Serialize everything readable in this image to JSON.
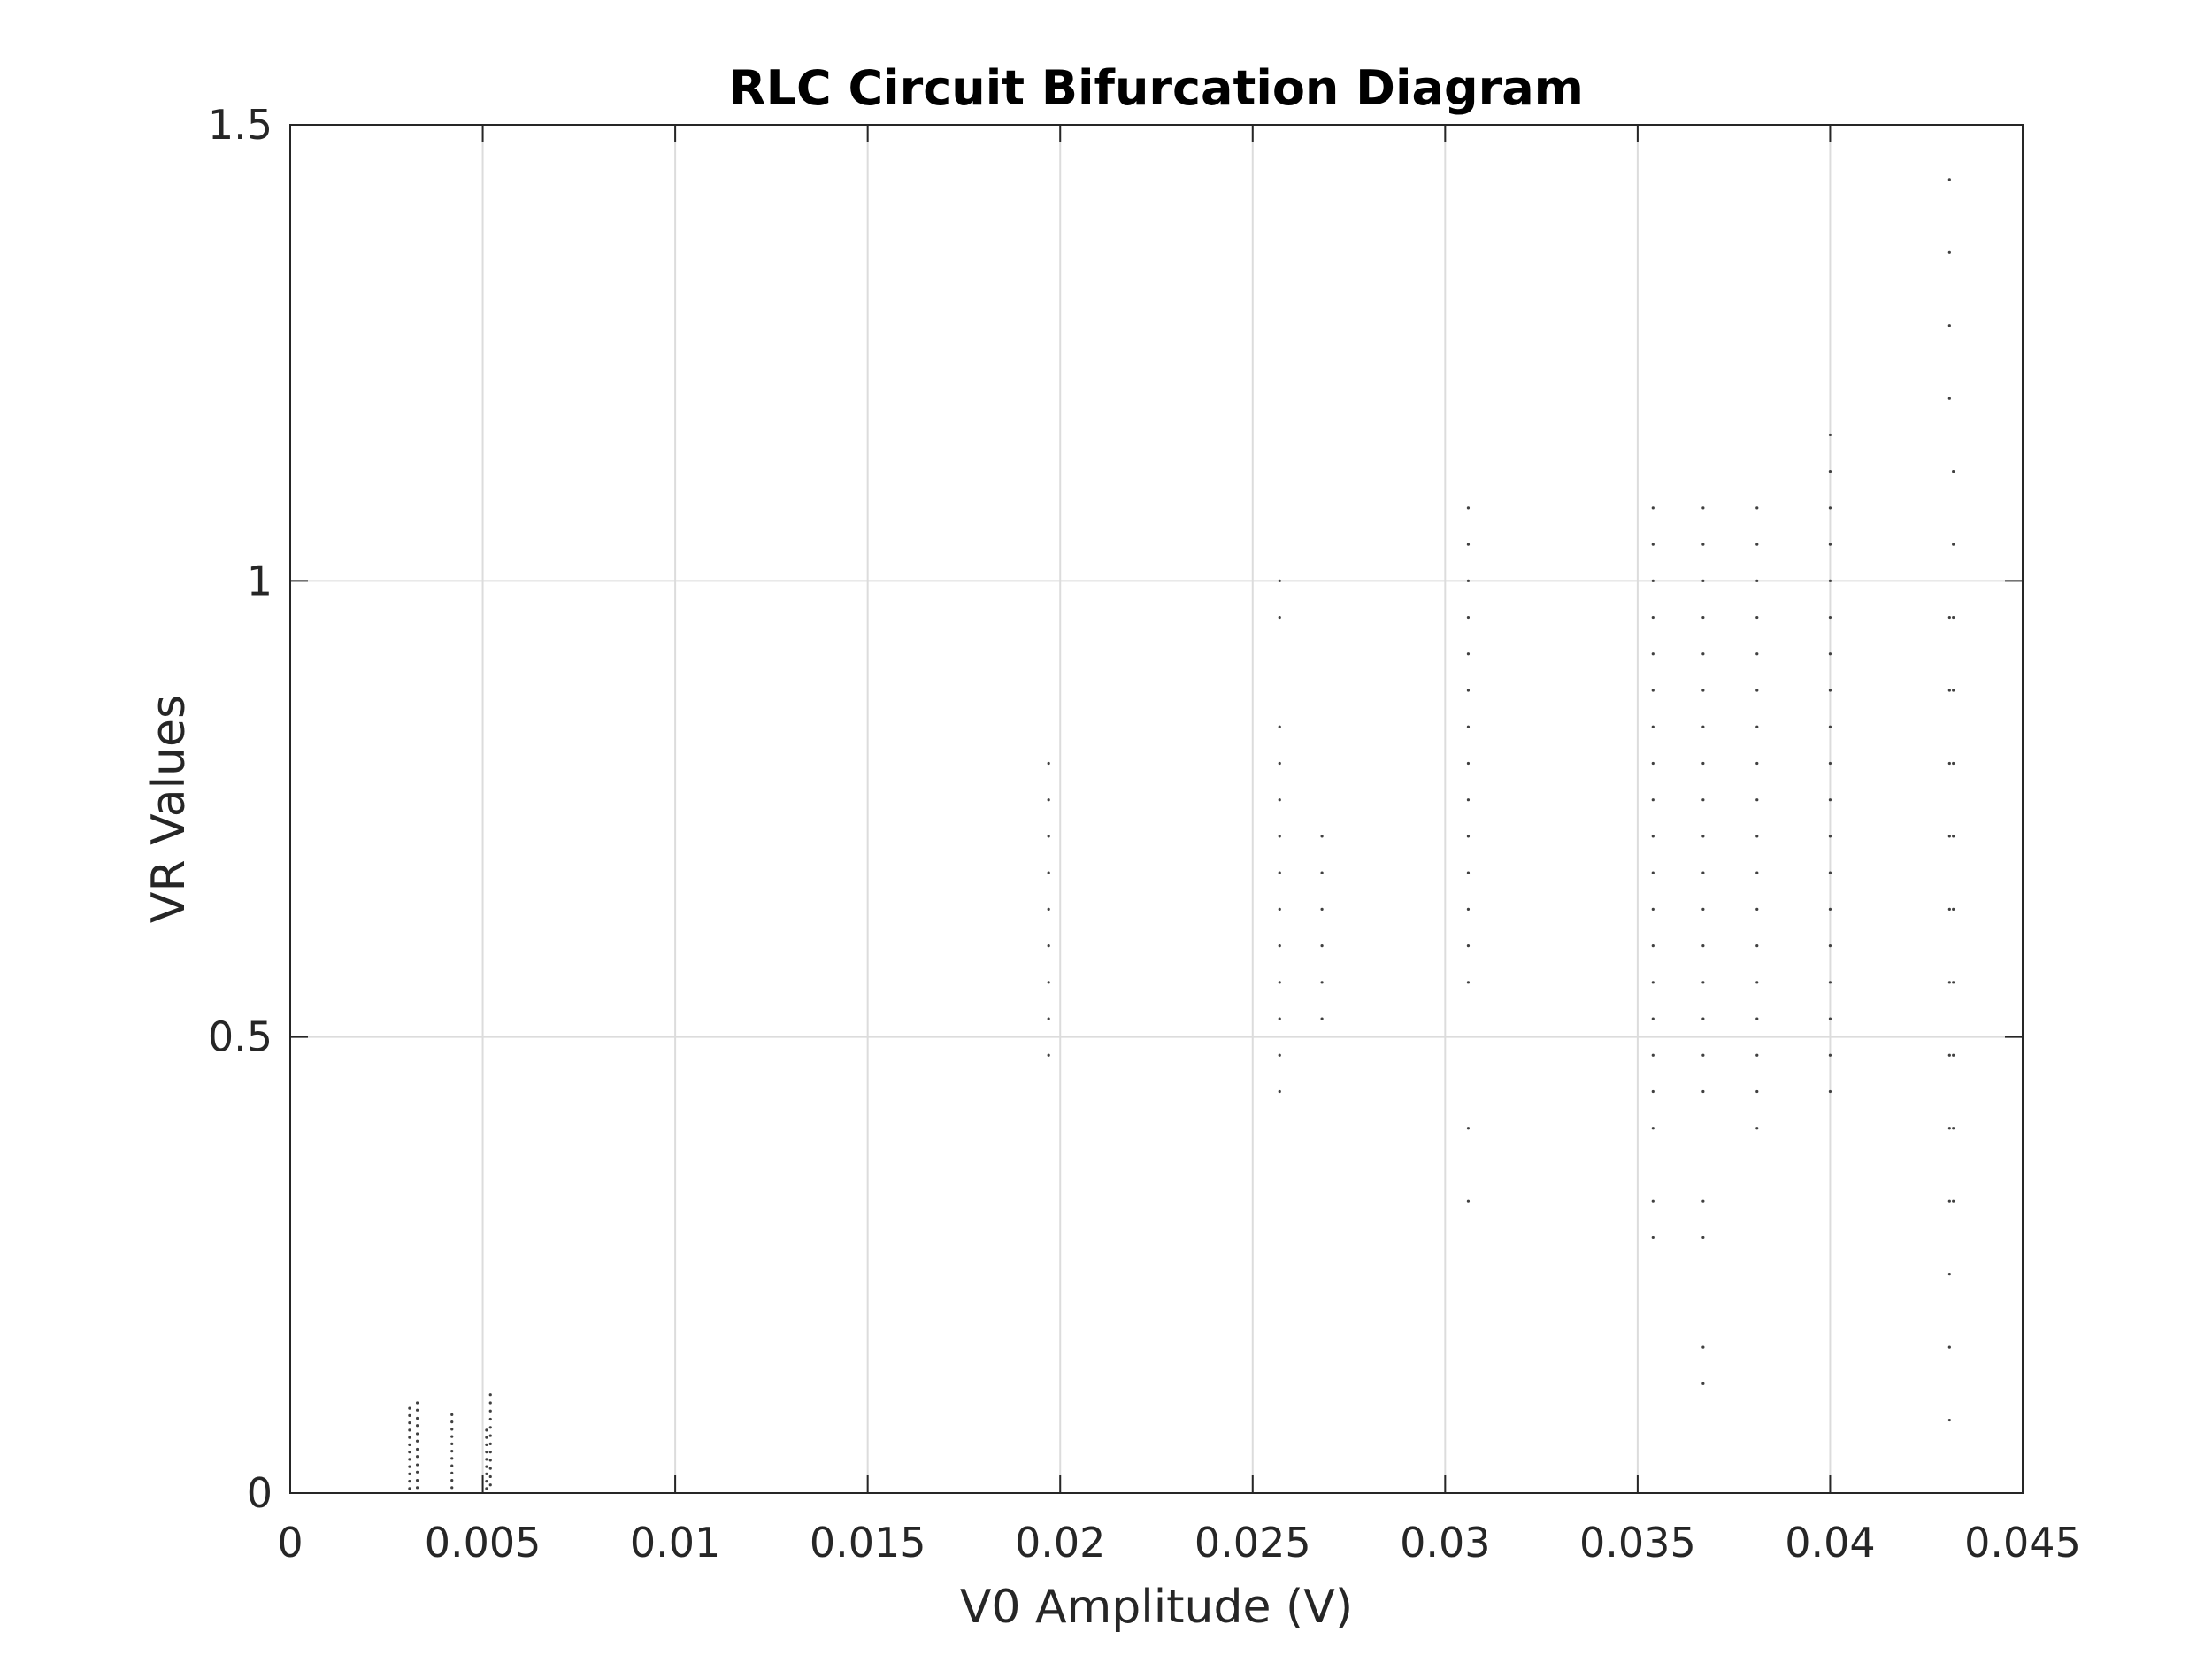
{
  "chart_data": {
    "type": "scatter",
    "title": "RLC Circuit Bifurcation Diagram",
    "xlabel": "V0 Amplitude (V)",
    "ylabel": "VR Values",
    "xlim": [
      0,
      0.045
    ],
    "ylim": [
      0,
      1.5
    ],
    "xticks": [
      "0",
      "0.005",
      "0.01",
      "0.015",
      "0.02",
      "0.025",
      "0.03",
      "0.035",
      "0.04",
      "0.045"
    ],
    "yticks": [
      "0",
      "0.5",
      "1",
      "1.5"
    ],
    "grid": true,
    "colors": {
      "points": "#404040",
      "grid": "#dcdcdc",
      "axes": "#262626",
      "background": "#ffffff"
    },
    "series": [
      {
        "columns": [
          {
            "x": 0.0031,
            "y": [
              0.005,
              0.013,
              0.021,
              0.029,
              0.037,
              0.045,
              0.053,
              0.061,
              0.069,
              0.077,
              0.085,
              0.093
            ]
          },
          {
            "x": 0.0033,
            "y": [
              0.006,
              0.014,
              0.023,
              0.031,
              0.04,
              0.048,
              0.057,
              0.065,
              0.074,
              0.082,
              0.091,
              0.099
            ]
          },
          {
            "x": 0.0042,
            "y": [
              0.006,
              0.014,
              0.022,
              0.03,
              0.038,
              0.046,
              0.054,
              0.062,
              0.07,
              0.078,
              0.086
            ]
          },
          {
            "x": 0.0051,
            "y": [
              0.005,
              0.013,
              0.021,
              0.029,
              0.037,
              0.045,
              0.053,
              0.061,
              0.069
            ]
          },
          {
            "x": 0.0052,
            "y": [
              0.009,
              0.018,
              0.027,
              0.036,
              0.045,
              0.054,
              0.063,
              0.072,
              0.081,
              0.09,
              0.099,
              0.108
            ]
          },
          {
            "x": 0.0197,
            "y": [
              0.48,
              0.52,
              0.56,
              0.6,
              0.64,
              0.68,
              0.72,
              0.76,
              0.8
            ]
          },
          {
            "x": 0.0257,
            "y": [
              0.44,
              0.48,
              0.52,
              0.56,
              0.6,
              0.64,
              0.68,
              0.72,
              0.76,
              0.8,
              0.84,
              0.96,
              1.0
            ]
          },
          {
            "x": 0.0268,
            "y": [
              0.52,
              0.56,
              0.6,
              0.64,
              0.68,
              0.72
            ]
          },
          {
            "x": 0.0306,
            "y": [
              0.32,
              0.4,
              0.56,
              0.6,
              0.64,
              0.68,
              0.72,
              0.76,
              0.8,
              0.84,
              0.88,
              0.92,
              0.96,
              1.0,
              1.04,
              1.08
            ]
          },
          {
            "x": 0.0354,
            "y": [
              0.28,
              0.32,
              0.4,
              0.44,
              0.48,
              0.52,
              0.56,
              0.6,
              0.64,
              0.68,
              0.72,
              0.76,
              0.8,
              0.84,
              0.88,
              0.92,
              0.96,
              1.0,
              1.04,
              1.08
            ]
          },
          {
            "x": 0.0367,
            "y": [
              0.12,
              0.16,
              0.28,
              0.32,
              0.44,
              0.48,
              0.52,
              0.56,
              0.6,
              0.64,
              0.68,
              0.72,
              0.76,
              0.8,
              0.84,
              0.88,
              0.92,
              0.96,
              1.0,
              1.04,
              1.08
            ]
          },
          {
            "x": 0.0381,
            "y": [
              0.4,
              0.44,
              0.48,
              0.52,
              0.56,
              0.6,
              0.64,
              0.68,
              0.72,
              0.76,
              0.8,
              0.84,
              0.88,
              0.92,
              0.96,
              1.0,
              1.04,
              1.08
            ]
          },
          {
            "x": 0.04,
            "y": [
              0.44,
              0.48,
              0.52,
              0.56,
              0.6,
              0.64,
              0.68,
              0.72,
              0.76,
              0.8,
              0.84,
              0.88,
              0.92,
              0.96,
              1.0,
              1.04,
              1.08,
              1.12,
              1.16
            ]
          },
          {
            "x": 0.0431,
            "y": [
              0.08,
              0.16,
              0.24,
              0.32,
              0.4,
              0.48,
              0.56,
              0.64,
              0.72,
              0.8,
              0.88,
              0.96,
              1.2,
              1.28,
              1.36,
              1.44
            ]
          },
          {
            "x": 0.0432,
            "y": [
              0.32,
              0.4,
              0.48,
              0.56,
              0.64,
              0.72,
              0.8,
              0.88,
              0.96,
              1.04,
              1.12
            ]
          }
        ]
      }
    ]
  }
}
